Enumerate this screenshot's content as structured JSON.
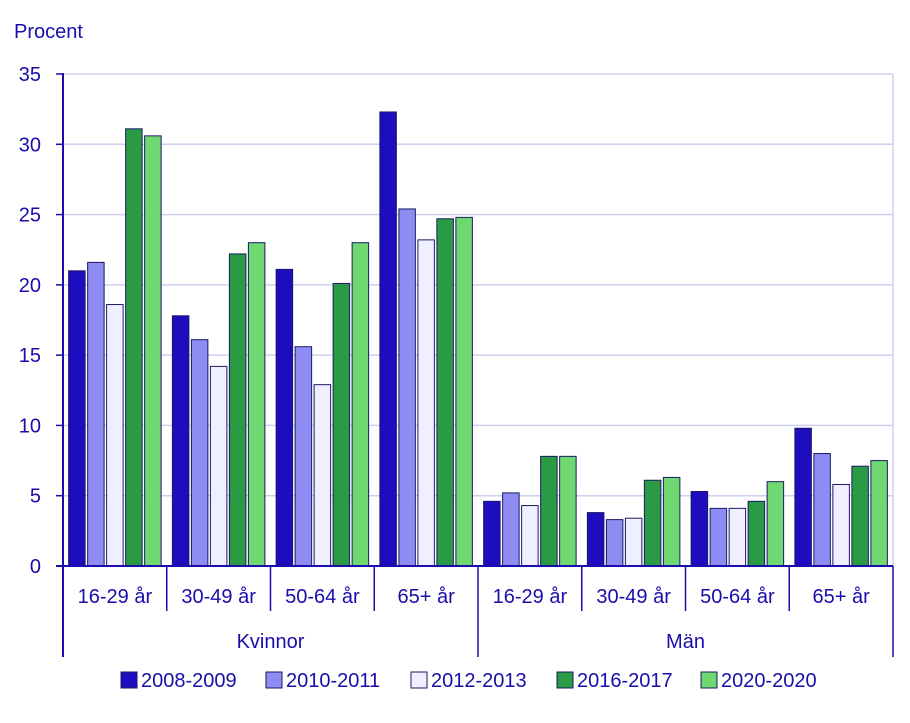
{
  "chart_data": {
    "type": "bar",
    "ylabel": "Procent",
    "ylim": [
      0,
      35
    ],
    "yticks": [
      0,
      5,
      10,
      15,
      20,
      25,
      30,
      35
    ],
    "groups": [
      {
        "name": "Kvinnor",
        "categories": [
          "16-29 år",
          "30-49 år",
          "50-64 år",
          "65+ år"
        ]
      },
      {
        "name": "Män",
        "categories": [
          "16-29 år",
          "30-49 år",
          "50-64 år",
          "65+ år"
        ]
      }
    ],
    "series": [
      {
        "name": "2008-2009",
        "color": "#1d0dbf",
        "values": [
          21.0,
          17.8,
          21.1,
          32.3,
          4.6,
          3.8,
          5.3,
          9.8
        ]
      },
      {
        "name": "2010-2011",
        "color": "#8c8cf2",
        "values": [
          21.6,
          16.1,
          15.6,
          25.4,
          5.2,
          3.3,
          4.1,
          8.0
        ]
      },
      {
        "name": "2012-2013",
        "color": "#f0efff",
        "values": [
          18.6,
          14.2,
          12.9,
          23.2,
          4.3,
          3.4,
          4.1,
          5.8
        ]
      },
      {
        "name": "2016-2017",
        "color": "#2a9a45",
        "values": [
          31.1,
          22.2,
          20.1,
          24.7,
          7.8,
          6.1,
          4.6,
          7.1
        ]
      },
      {
        "name": "2020-2020",
        "color": "#6fd870",
        "values": [
          30.6,
          23.0,
          23.0,
          24.8,
          7.8,
          6.3,
          6.0,
          7.5
        ]
      }
    ],
    "grid": true,
    "legend": "bottom"
  }
}
